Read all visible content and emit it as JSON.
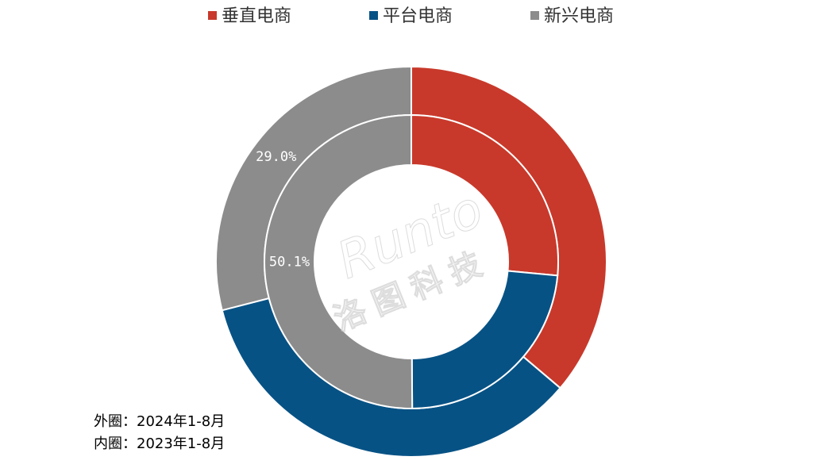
{
  "chart_data": {
    "type": "pie",
    "categories": [
      "垂直电商",
      "平台电商",
      "新兴电商"
    ],
    "colors": [
      "#c8392b",
      "#075285",
      "#8c8c8c"
    ],
    "series": [
      {
        "values": [
          36.2,
          34.8,
          29.0
        ],
        "value_labels": [
          null,
          null,
          "29.0%"
        ]
      },
      {
        "values": [
          26.5,
          23.4,
          50.1
        ],
        "value_labels": [
          null,
          null,
          "50.1%"
        ]
      }
    ],
    "notes": [
      "外圈：2024年1-8月",
      "内圈：2023年1-8月"
    ],
    "watermark": [
      "Runto",
      "洛图科技"
    ]
  }
}
